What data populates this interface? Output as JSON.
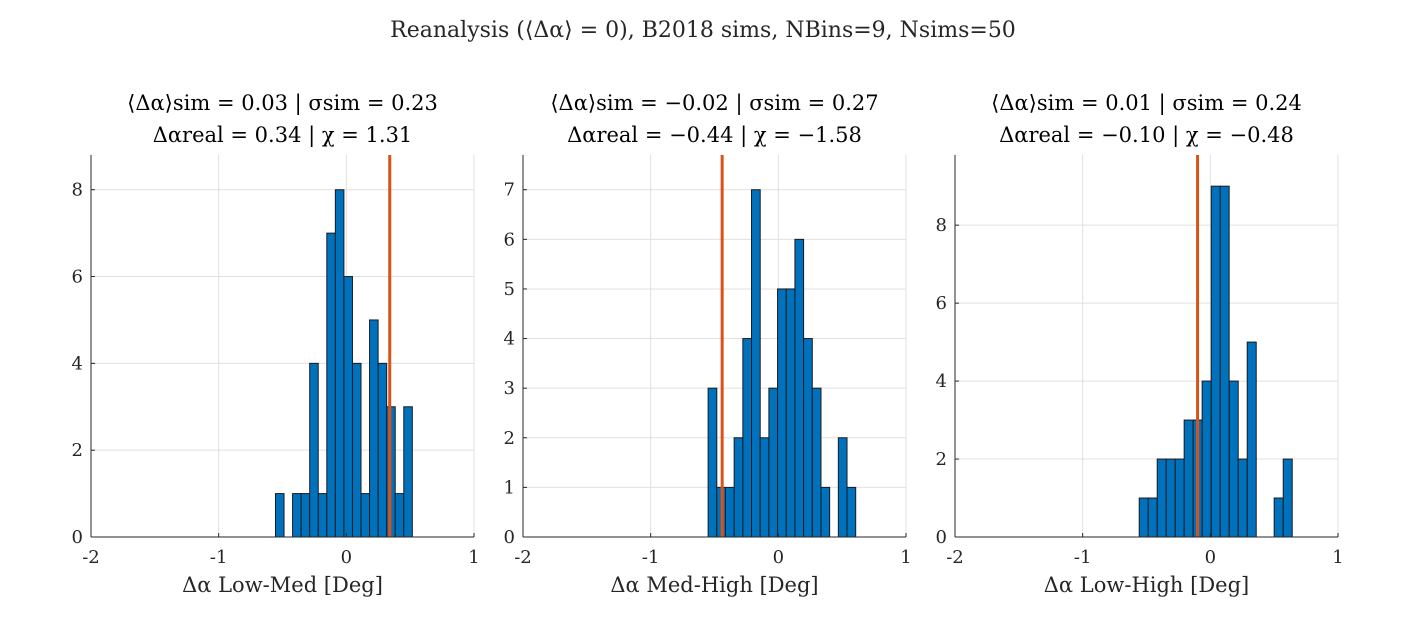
{
  "figure": {
    "suptitle": "Reanalysis (⟨Δα⟩ = 0), B2018 sims, NBins=9, Nsims=50"
  },
  "colors": {
    "bar_fill": "#0072BD",
    "bar_edge": "#1a1a1a",
    "real_line": "#D95319",
    "grid": "#e0e0e0",
    "axis": "#262626"
  },
  "chart_data": [
    {
      "type": "bar",
      "title_line1": "⟨Δα⟩sim = 0.03 | σsim = 0.23",
      "title_line2": "Δαreal = 0.34 | χ = 1.31",
      "xlabel": "Δα Low-Med [Deg]",
      "ylabel": "",
      "xlim": [
        -2,
        1
      ],
      "ylim": [
        0,
        8.8
      ],
      "xticks": [
        "-2",
        "-1",
        "0",
        "1"
      ],
      "xtick_values": [
        -2,
        -1,
        0,
        1
      ],
      "yticks": [
        0,
        2,
        4,
        6,
        8
      ],
      "grid": true,
      "bin_width": 0.067,
      "bins": [
        {
          "left": -0.555,
          "count": 1
        },
        {
          "left": -0.421,
          "count": 1
        },
        {
          "left": -0.354,
          "count": 1
        },
        {
          "left": -0.287,
          "count": 4
        },
        {
          "left": -0.22,
          "count": 1
        },
        {
          "left": -0.153,
          "count": 7
        },
        {
          "left": -0.086,
          "count": 8
        },
        {
          "left": -0.019,
          "count": 6
        },
        {
          "left": 0.048,
          "count": 4
        },
        {
          "left": 0.115,
          "count": 1
        },
        {
          "left": 0.182,
          "count": 5
        },
        {
          "left": 0.249,
          "count": 4
        },
        {
          "left": 0.316,
          "count": 3
        },
        {
          "left": 0.383,
          "count": 1
        },
        {
          "left": 0.45,
          "count": 3
        }
      ],
      "real_value": 0.34
    },
    {
      "type": "bar",
      "title_line1": "⟨Δα⟩sim = −0.02 | σsim = 0.27",
      "title_line2": "Δαreal = −0.44 | χ = −1.58",
      "xlabel": "Δα Med-High [Deg]",
      "ylabel": "",
      "xlim": [
        -2,
        1
      ],
      "ylim": [
        0,
        7.7
      ],
      "xticks": [
        "-2",
        "-1",
        "0",
        "1"
      ],
      "xtick_values": [
        -2,
        -1,
        0,
        1
      ],
      "yticks": [
        0,
        1,
        2,
        3,
        4,
        5,
        6,
        7
      ],
      "grid": true,
      "bin_width": 0.068,
      "bins": [
        {
          "left": -0.55,
          "count": 3
        },
        {
          "left": -0.482,
          "count": 1
        },
        {
          "left": -0.414,
          "count": 1
        },
        {
          "left": -0.346,
          "count": 2
        },
        {
          "left": -0.278,
          "count": 4
        },
        {
          "left": -0.21,
          "count": 7
        },
        {
          "left": -0.142,
          "count": 2
        },
        {
          "left": -0.074,
          "count": 3
        },
        {
          "left": -0.006,
          "count": 5
        },
        {
          "left": 0.062,
          "count": 5
        },
        {
          "left": 0.13,
          "count": 6
        },
        {
          "left": 0.198,
          "count": 4
        },
        {
          "left": 0.266,
          "count": 3
        },
        {
          "left": 0.334,
          "count": 1
        },
        {
          "left": 0.47,
          "count": 2
        },
        {
          "left": 0.538,
          "count": 1
        }
      ],
      "real_value": -0.44
    },
    {
      "type": "bar",
      "title_line1": "⟨Δα⟩sim = 0.01 | σsim = 0.24",
      "title_line2": "Δαreal = −0.10 | χ = −0.48",
      "xlabel": "Δα Low-High [Deg]",
      "ylabel": "",
      "xlim": [
        -2,
        1
      ],
      "ylim": [
        0,
        9.8
      ],
      "xticks": [
        "-2",
        "-1",
        "0",
        "1"
      ],
      "xtick_values": [
        -2,
        -1,
        0,
        1
      ],
      "yticks": [
        0,
        2,
        4,
        6,
        8
      ],
      "grid": true,
      "bin_width": 0.0705,
      "bins": [
        {
          "left": -0.557,
          "count": 1
        },
        {
          "left": -0.487,
          "count": 1
        },
        {
          "left": -0.416,
          "count": 2
        },
        {
          "left": -0.346,
          "count": 2
        },
        {
          "left": -0.275,
          "count": 2
        },
        {
          "left": -0.205,
          "count": 3
        },
        {
          "left": -0.134,
          "count": 3
        },
        {
          "left": -0.064,
          "count": 4
        },
        {
          "left": 0.007,
          "count": 9
        },
        {
          "left": 0.077,
          "count": 9
        },
        {
          "left": 0.148,
          "count": 4
        },
        {
          "left": 0.218,
          "count": 2
        },
        {
          "left": 0.289,
          "count": 5
        },
        {
          "left": 0.5,
          "count": 1
        },
        {
          "left": 0.571,
          "count": 2
        }
      ],
      "real_value": -0.1
    }
  ]
}
